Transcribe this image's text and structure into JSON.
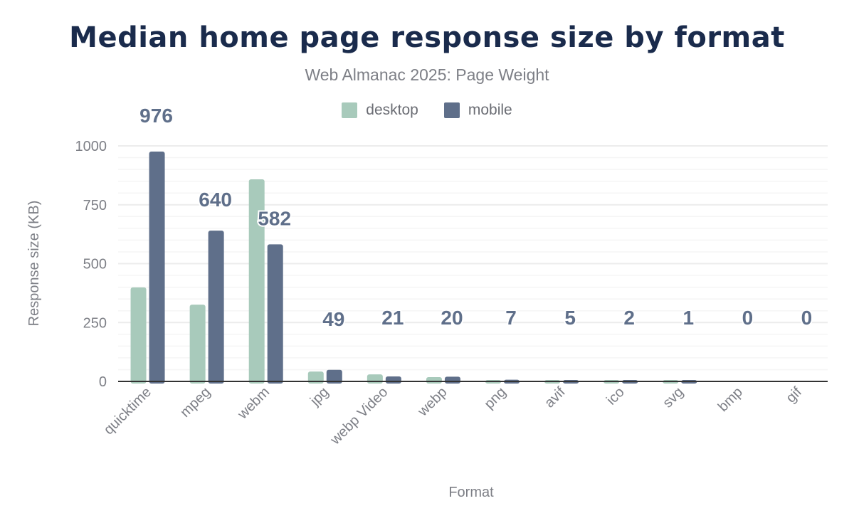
{
  "chart_data": {
    "type": "bar",
    "title": "Median home page response size by format",
    "subtitle": "Web Almanac 2025: Page Weight",
    "xlabel": "Format",
    "ylabel": "Response size (KB)",
    "ylim": [
      0,
      1000
    ],
    "yticks": [
      0,
      250,
      500,
      750,
      1000
    ],
    "grid": true,
    "legend_position": "top",
    "categories": [
      "quicktime",
      "mpeg",
      "webm",
      "jpg",
      "webp Video",
      "webp",
      "png",
      "avif",
      "ico",
      "svg",
      "bmp",
      "gif"
    ],
    "series": [
      {
        "name": "desktop",
        "color": "#a8cabb",
        "values": [
          399,
          326,
          858,
          42,
          30,
          18,
          6,
          6,
          1,
          1,
          0,
          0
        ]
      },
      {
        "name": "mobile",
        "color": "#5f6f8a",
        "values": [
          976,
          640,
          582,
          49,
          21,
          20,
          7,
          5,
          2,
          1,
          0,
          0
        ],
        "data_labels": [
          "976",
          "640",
          "582",
          "49",
          "21",
          "20",
          "7",
          "5",
          "2",
          "1",
          "0",
          "0"
        ]
      }
    ]
  }
}
